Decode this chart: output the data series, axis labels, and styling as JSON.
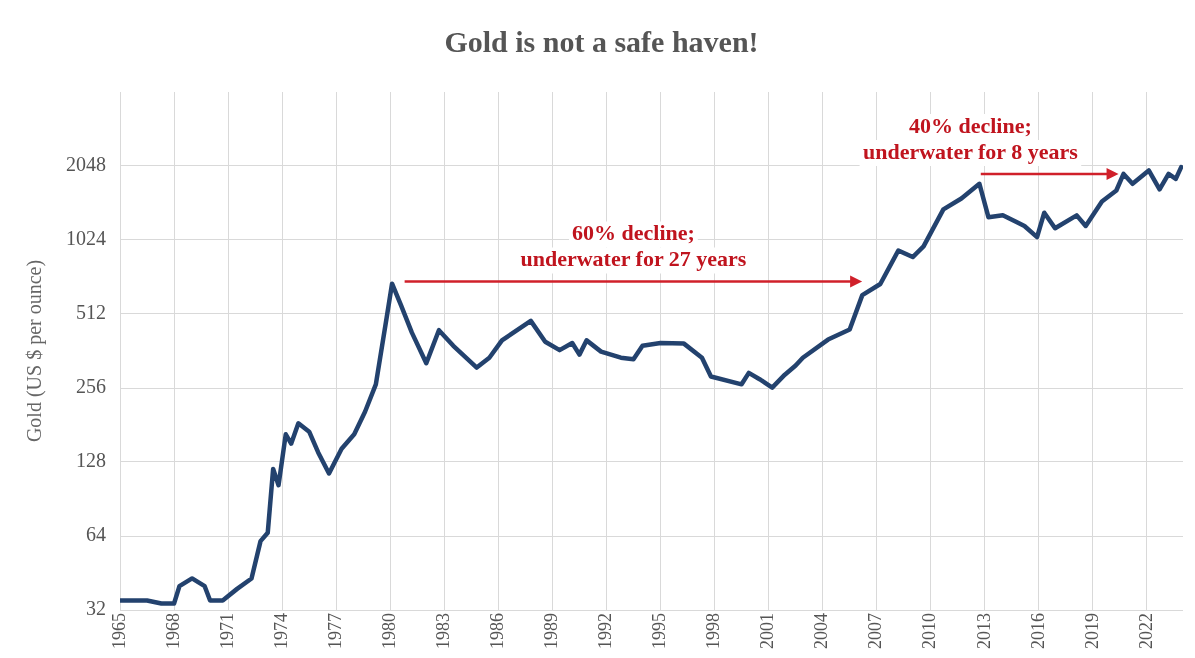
{
  "chart_data": {
    "type": "line",
    "title": "Gold is not a safe haven!",
    "ylabel": "Gold (US $ per ounce)",
    "log": "y",
    "grid": true,
    "legend": false,
    "marker": "none",
    "line_style": "solid",
    "xlim": [
      1965,
      2024
    ],
    "xticks": [
      1965,
      1968,
      1971,
      1974,
      1977,
      1980,
      1983,
      1986,
      1989,
      1992,
      1995,
      1998,
      2001,
      2004,
      2007,
      2010,
      2013,
      2016,
      2019,
      2022
    ],
    "ylim": [
      32,
      4096
    ],
    "yticks": [
      32,
      64,
      128,
      256,
      512,
      1024,
      2048
    ],
    "series": [
      {
        "color": "#23426e",
        "x": [
          1965,
          1966.5,
          1967.3,
          1968,
          1968.3,
          1969,
          1969.7,
          1970,
          1970.7,
          1971.5,
          1972.3,
          1972.8,
          1973.2,
          1973.5,
          1973.8,
          1974.2,
          1974.5,
          1974.9,
          1975.5,
          1976,
          1976.6,
          1977.3,
          1978,
          1978.6,
          1979.2,
          1979.8,
          1980.1,
          1980.6,
          1981.2,
          1982.0,
          1982.7,
          1983.5,
          1984.8,
          1985.5,
          1986.2,
          1987.8,
          1988.6,
          1989.4,
          1990.1,
          1990.5,
          1990.9,
          1991.7,
          1992.8,
          1993.5,
          1994,
          1995,
          1996.3,
          1997.3,
          1997.8,
          1999.5,
          1999.9,
          2000.5,
          2001.2,
          2001.9,
          2002.5,
          2002.9,
          2004.3,
          2005.5,
          2006.2,
          2007.2,
          2008.2,
          2009,
          2009.6,
          2010.7,
          2011.7,
          2012.7,
          2013.2,
          2014,
          2015.2,
          2015.9,
          2016.3,
          2016.9,
          2018.1,
          2018.6,
          2019.5,
          2020.3,
          2020.7,
          2021.2,
          2022.1,
          2022.7,
          2023.2,
          2023.6,
          2023.9
        ],
        "values": [
          35,
          35,
          34,
          34,
          40,
          43,
          40,
          35,
          35,
          39,
          43,
          61,
          66,
          120,
          103,
          166,
          152,
          184,
          170,
          140,
          115,
          145,
          166,
          205,
          265,
          495,
          680,
          555,
          430,
          323,
          440,
          380,
          310,
          340,
          400,
          480,
          395,
          365,
          390,
          350,
          400,
          360,
          340,
          335,
          380,
          390,
          388,
          340,
          285,
          265,
          295,
          278,
          257,
          290,
          316,
          340,
          403,
          443,
          611,
          678,
          928,
          873,
          965,
          1364,
          1510,
          1734,
          1268,
          1290,
          1168,
          1052,
          1322,
          1143,
          1290,
          1168,
          1468,
          1628,
          1902,
          1734,
          1965,
          1645,
          1902,
          1815,
          2026
        ]
      }
    ],
    "annotations": [
      "60% decline;\nunderwater for 27 years",
      {
        "text": "40% decline;\nunderwater for 8 years",
        "x": 2020.7,
        "y": 1902
      }
    ]
  }
}
